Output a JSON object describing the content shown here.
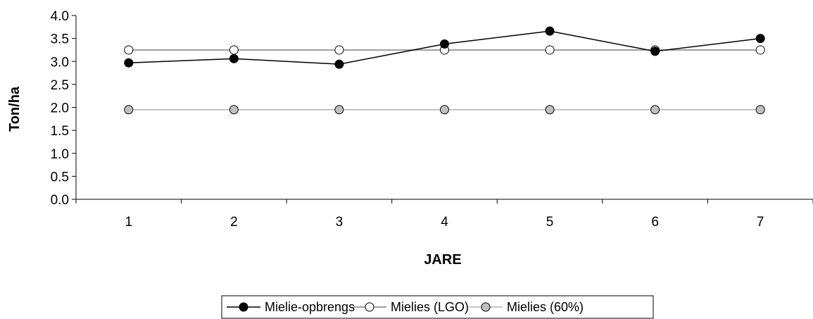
{
  "chart_data": {
    "type": "line",
    "title": "",
    "xlabel": "JARE",
    "ylabel": "Ton/ha",
    "categories": [
      "1",
      "2",
      "3",
      "4",
      "5",
      "6",
      "7"
    ],
    "ylim": [
      0,
      4
    ],
    "yticks": [
      "0.0",
      "0.5",
      "1.0",
      "1.5",
      "2.0",
      "2.5",
      "3.0",
      "3.5",
      "4.0"
    ],
    "grid": false,
    "legend_position": "bottom",
    "series": [
      {
        "name": "Mielie-opbrengs",
        "values": [
          2.97,
          3.06,
          2.94,
          3.38,
          3.66,
          3.22,
          3.5
        ],
        "line_color": "#000000",
        "marker_fill": "#000000"
      },
      {
        "name": "Mielies (LGO)",
        "values": [
          3.25,
          3.25,
          3.25,
          3.25,
          3.25,
          3.25,
          3.25
        ],
        "line_color": "#808080",
        "marker_fill": "#ffffff"
      },
      {
        "name": "Mielies (60%)",
        "values": [
          1.95,
          1.95,
          1.95,
          1.95,
          1.95,
          1.95,
          1.95
        ],
        "line_color": "#b3b3b3",
        "marker_fill": "#c0c0c0"
      }
    ]
  }
}
